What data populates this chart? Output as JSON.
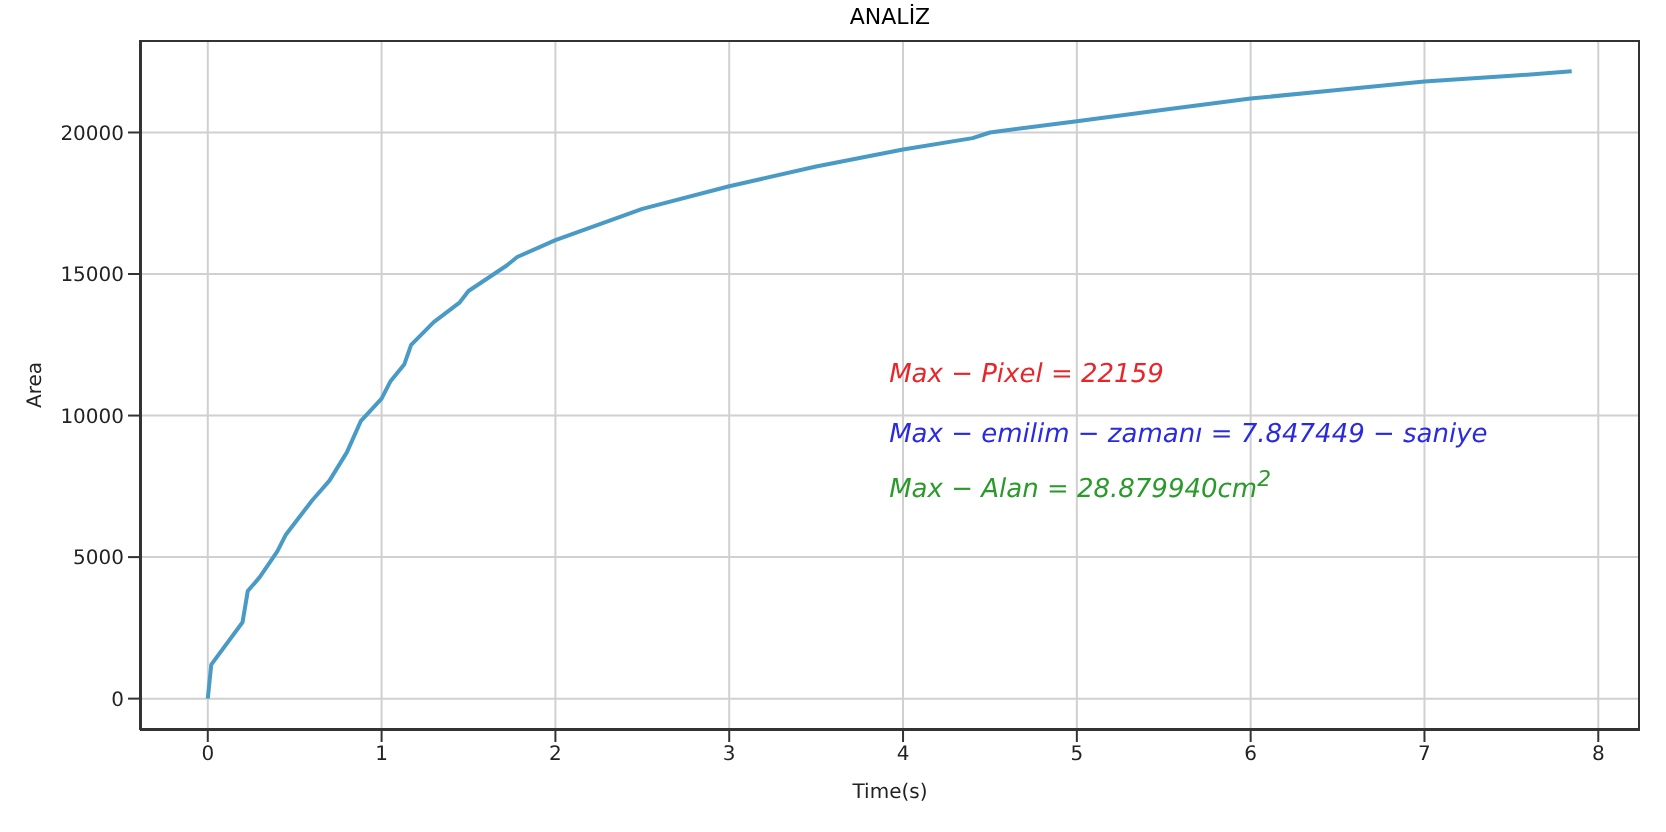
{
  "chart_data": {
    "type": "line",
    "title": "ANALİZ",
    "xlabel": "Time(s)",
    "ylabel": "Area",
    "xlim": [
      -0.39,
      8.24
    ],
    "xticks": [
      0,
      1,
      2,
      3,
      4,
      5,
      6,
      7,
      8
    ],
    "ylim": [
      -1108,
      23267
    ],
    "yticks": [
      0,
      5000,
      10000,
      15000,
      20000
    ],
    "grid": true,
    "marker": "none",
    "line_style": "solid",
    "annotations": [
      "Max − Pixel = 22159",
      "Max − emilim − zamanı = 7.847449 − saniye",
      "Max − Alan = 28.879940cm$^{2}$"
    ],
    "series": [
      {
        "color": "#4a9ac6",
        "x": [
          0,
          0.02,
          0.2,
          0.23,
          0.3,
          0.4,
          0.45,
          0.6,
          0.7,
          0.8,
          0.88,
          1.0,
          1.05,
          1.13,
          1.17,
          1.3,
          1.45,
          1.5,
          1.72,
          1.78,
          2.0,
          2.5,
          3.0,
          3.5,
          4.0,
          4.4,
          4.5,
          5.0,
          5.5,
          6.0,
          6.5,
          7.0,
          7.5,
          7.847
        ],
        "values": [
          0,
          1200,
          2700,
          3800,
          4300,
          5200,
          5800,
          7000,
          7700,
          8700,
          9800,
          10600,
          11200,
          11800,
          12500,
          13300,
          14000,
          14400,
          15300,
          15600,
          16200,
          17300,
          18100,
          18800,
          19400,
          19800,
          20000,
          20400,
          20800,
          21200,
          21500,
          21800,
          22000,
          22159
        ]
      }
    ]
  }
}
